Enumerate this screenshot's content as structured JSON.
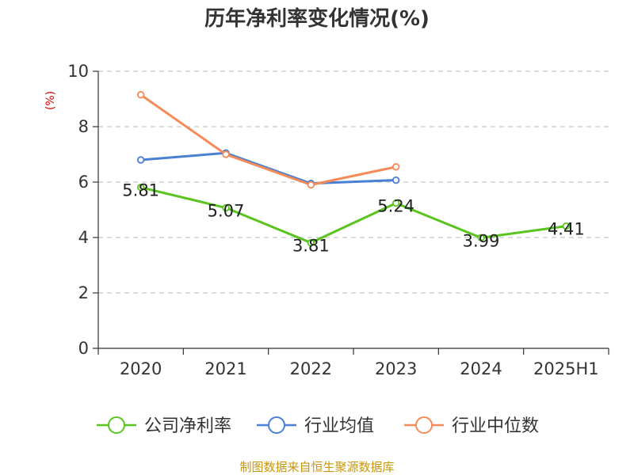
{
  "chart_data": {
    "type": "line",
    "title": "历年净利率变化情况(%)",
    "ylabel": "(%)",
    "xlabel": "",
    "categories": [
      "2020",
      "2021",
      "2022",
      "2023",
      "2024",
      "2025H1"
    ],
    "ylim": [
      0,
      10
    ],
    "yticks": [
      0,
      2,
      4,
      6,
      8,
      10
    ],
    "grid": true,
    "legend_position": "bottom",
    "series": [
      {
        "name": "公司净利率",
        "color": "#5ac41e",
        "values": [
          5.81,
          5.07,
          3.81,
          5.24,
          3.99,
          4.41
        ],
        "labels": [
          "5.81",
          "5.07",
          "3.81",
          "5.24",
          "3.99",
          "4.41"
        ]
      },
      {
        "name": "行业均值",
        "color": "#4a7fd6",
        "values": [
          6.8,
          7.05,
          5.95,
          6.07,
          null,
          null
        ]
      },
      {
        "name": "行业中位数",
        "color": "#f58b58",
        "values": [
          9.15,
          7.0,
          5.9,
          6.55,
          null,
          null
        ]
      }
    ]
  },
  "source_note": "制图数据来自恒生聚源数据库"
}
